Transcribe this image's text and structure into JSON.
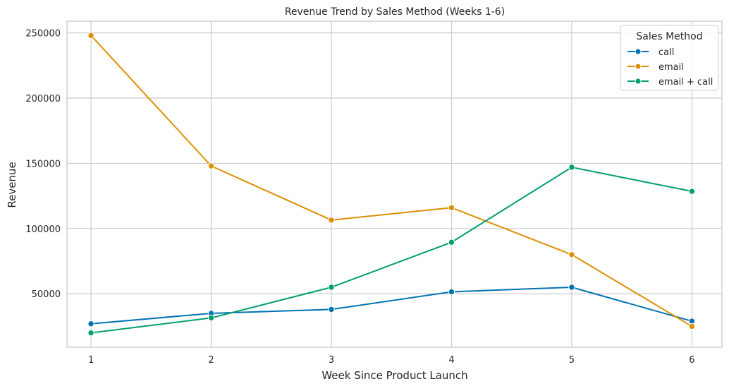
{
  "chart_data": {
    "type": "line",
    "title": "Revenue Trend by Sales Method (Weeks 1-6)",
    "xlabel": "Week Since Product Launch",
    "ylabel": "Revenue",
    "x": [
      1,
      2,
      3,
      4,
      5,
      6
    ],
    "xlim": [
      0.8,
      6.25
    ],
    "ylim": [
      9000,
      259000
    ],
    "yticks": [
      50000,
      100000,
      150000,
      200000,
      250000
    ],
    "grid": true,
    "legend": {
      "title": "Sales Method",
      "placement": "top-right"
    },
    "series": [
      {
        "name": "call",
        "color": "#0173b2",
        "values": [
          27000,
          35000,
          38000,
          51500,
          55000,
          29000
        ]
      },
      {
        "name": "email",
        "color": "#de8f05",
        "values": [
          248000,
          148000,
          106500,
          116000,
          80000,
          25000
        ]
      },
      {
        "name": "email + call",
        "color": "#029e73",
        "values": [
          20000,
          31500,
          55000,
          89500,
          147000,
          128500
        ]
      }
    ]
  }
}
